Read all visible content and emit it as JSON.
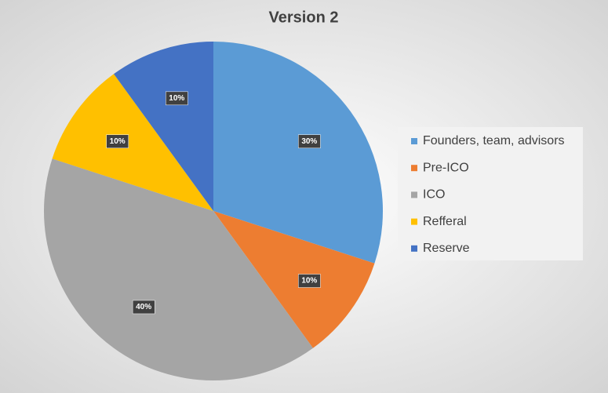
{
  "chart_data": {
    "type": "pie",
    "title": "Version 2",
    "categories": [
      "Founders, team, advisors",
      "Pre-ICO",
      "ICO",
      "Refferal",
      "Reserve"
    ],
    "values": [
      30,
      10,
      40,
      10,
      10
    ],
    "value_labels": [
      "30%",
      "10%",
      "40%",
      "10%",
      "10%"
    ],
    "colors": [
      "#5b9bd5",
      "#ed7d31",
      "#a5a5a5",
      "#ffc000",
      "#4472c4"
    ],
    "legend": "right"
  }
}
